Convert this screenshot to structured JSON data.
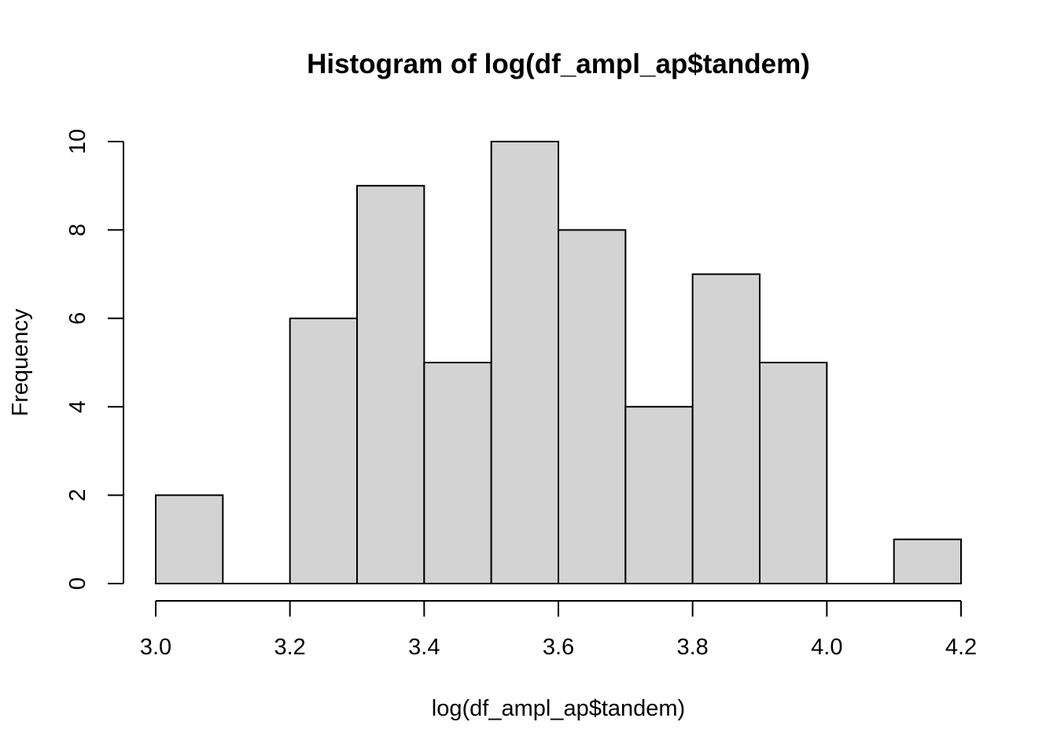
{
  "chart_data": {
    "type": "bar",
    "title": "Histogram of log(df_ampl_ap$tandem)",
    "xlabel": "log(df_ampl_ap$tandem)",
    "ylabel": "Frequency",
    "bins": [
      {
        "start": 3.0,
        "end": 3.1,
        "count": 2
      },
      {
        "start": 3.1,
        "end": 3.2,
        "count": 0
      },
      {
        "start": 3.2,
        "end": 3.3,
        "count": 6
      },
      {
        "start": 3.3,
        "end": 3.4,
        "count": 9
      },
      {
        "start": 3.4,
        "end": 3.5,
        "count": 5
      },
      {
        "start": 3.5,
        "end": 3.6,
        "count": 10
      },
      {
        "start": 3.6,
        "end": 3.7,
        "count": 8
      },
      {
        "start": 3.7,
        "end": 3.8,
        "count": 4
      },
      {
        "start": 3.8,
        "end": 3.9,
        "count": 7
      },
      {
        "start": 3.9,
        "end": 4.0,
        "count": 5
      },
      {
        "start": 4.0,
        "end": 4.1,
        "count": 0
      },
      {
        "start": 4.1,
        "end": 4.2,
        "count": 1
      }
    ],
    "xlim": [
      3.0,
      4.2
    ],
    "ylim": [
      0,
      10
    ],
    "x_ticks": [
      3.0,
      3.2,
      3.4,
      3.6,
      3.8,
      4.0,
      4.2
    ],
    "x_tick_labels": [
      "3.0",
      "3.2",
      "3.4",
      "3.6",
      "3.8",
      "4.0",
      "4.2"
    ],
    "y_ticks": [
      0,
      2,
      4,
      6,
      8,
      10
    ],
    "y_tick_labels": [
      "0",
      "2",
      "4",
      "6",
      "8",
      "10"
    ],
    "grid": false,
    "bar_fill_color": "#d3d3d3",
    "bar_edge_color": "#000000"
  }
}
